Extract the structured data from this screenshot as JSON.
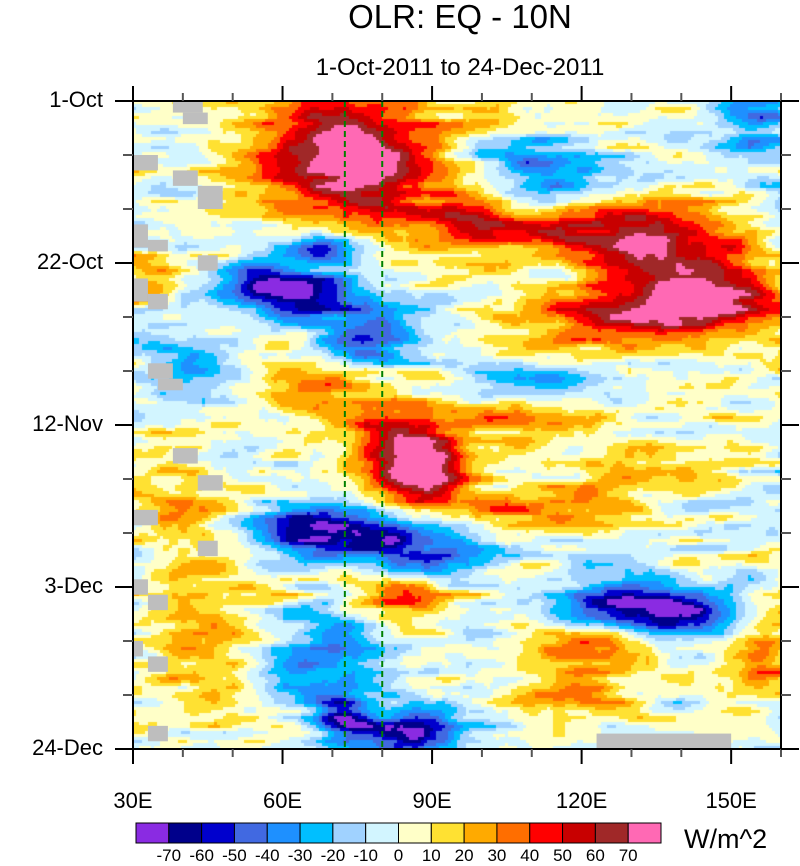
{
  "chart_data": {
    "type": "heatmap",
    "title": "OLR: EQ - 10N",
    "subtitle": "1-Oct-2011 to 24-Dec-2011",
    "xlabel": "",
    "ylabel": "",
    "x_axis": {
      "range_deg_east": [
        30,
        160
      ],
      "major_ticks": [
        30,
        60,
        90,
        120,
        150
      ],
      "tick_labels": [
        "30E",
        "60E",
        "90E",
        "120E",
        "150E"
      ],
      "minor_tick_step_deg": 10
    },
    "y_axis": {
      "range_days_from_1oct": [
        0,
        84
      ],
      "reversed": true,
      "major_ticks_days": [
        0,
        21,
        42,
        63,
        84
      ],
      "tick_labels": [
        "1-Oct",
        "22-Oct",
        "12-Nov",
        "3-Dec",
        "24-Dec"
      ],
      "minor_tick_step_days": 7
    },
    "reference_lines_deg_east": [
      72.5,
      80
    ],
    "colorbar": {
      "units": "W/m^2",
      "levels": [
        -70,
        -60,
        -50,
        -40,
        -30,
        -20,
        -10,
        0,
        10,
        20,
        30,
        40,
        50,
        60,
        70
      ],
      "colors": [
        "#8a2be2",
        "#00008b",
        "#0000cd",
        "#4169e1",
        "#1e90ff",
        "#00bfff",
        "#a0d2ff",
        "#d2f5ff",
        "#ffffc8",
        "#ffe132",
        "#ffaa00",
        "#ff6e00",
        "#ff0000",
        "#c80000",
        "#a02828",
        "#ff69b4"
      ],
      "label_text": [
        "-70",
        "-60",
        "-50",
        "-40",
        "-30",
        "-20",
        "-10",
        "0",
        "10",
        "20",
        "30",
        "40",
        "50",
        "60",
        "70"
      ]
    },
    "missing_color": "#bebebe",
    "features": [
      {
        "lon": 76,
        "day": 8,
        "amp": 68,
        "slon": 9,
        "sday": 5
      },
      {
        "lon": 66,
        "day": 6,
        "amp": 35,
        "slon": 12,
        "sday": 8
      },
      {
        "lon": 95,
        "day": 15,
        "amp": 45,
        "slon": 8,
        "sday": 3
      },
      {
        "lon": 128,
        "day": 17,
        "amp": 52,
        "slon": 10,
        "sday": 3
      },
      {
        "lon": 140,
        "day": 21,
        "amp": 45,
        "slon": 12,
        "sday": 4
      },
      {
        "lon": 130,
        "day": 28,
        "amp": 55,
        "slon": 14,
        "sday": 3
      },
      {
        "lon": 148,
        "day": 26,
        "amp": 45,
        "slon": 10,
        "sday": 3
      },
      {
        "lon": 110,
        "day": 17,
        "amp": 30,
        "slon": 10,
        "sday": 2
      },
      {
        "lon": 100,
        "day": 4,
        "amp": 25,
        "slon": 8,
        "sday": 3
      },
      {
        "lon": 63,
        "day": 25,
        "amp": -72,
        "slon": 9,
        "sday": 2
      },
      {
        "lon": 68,
        "day": 19,
        "amp": -55,
        "slon": 5,
        "sday": 2
      },
      {
        "lon": 77,
        "day": 31,
        "amp": -62,
        "slon": 8,
        "sday": 3
      },
      {
        "lon": 55,
        "day": 22,
        "amp": -40,
        "slon": 6,
        "sday": 2
      },
      {
        "lon": 115,
        "day": 10,
        "amp": -45,
        "slon": 8,
        "sday": 2
      },
      {
        "lon": 105,
        "day": 6,
        "amp": -35,
        "slon": 8,
        "sday": 2
      },
      {
        "lon": 155,
        "day": 3,
        "amp": -40,
        "slon": 6,
        "sday": 3
      },
      {
        "lon": 110,
        "day": 37,
        "amp": -45,
        "slon": 9,
        "sday": 2
      },
      {
        "lon": 108,
        "day": 41,
        "amp": 40,
        "slon": 8,
        "sday": 2
      },
      {
        "lon": 84,
        "day": 46,
        "amp": 62,
        "slon": 7,
        "sday": 4
      },
      {
        "lon": 90,
        "day": 48,
        "amp": 55,
        "slon": 5,
        "sday": 3
      },
      {
        "lon": 72,
        "day": 37,
        "amp": 30,
        "slon": 10,
        "sday": 4
      },
      {
        "lon": 80,
        "day": 57,
        "amp": -74,
        "slon": 12,
        "sday": 2.5
      },
      {
        "lon": 63,
        "day": 55,
        "amp": -55,
        "slon": 7,
        "sday": 2
      },
      {
        "lon": 90,
        "day": 61,
        "amp": -45,
        "slon": 8,
        "sday": 1.5
      },
      {
        "lon": 110,
        "day": 53,
        "amp": 38,
        "slon": 12,
        "sday": 2
      },
      {
        "lon": 135,
        "day": 48,
        "amp": 30,
        "slon": 10,
        "sday": 2
      },
      {
        "lon": 85,
        "day": 63,
        "amp": 55,
        "slon": 7,
        "sday": 3
      },
      {
        "lon": 128,
        "day": 65,
        "amp": -62,
        "slon": 10,
        "sday": 2
      },
      {
        "lon": 140,
        "day": 67,
        "amp": -50,
        "slon": 8,
        "sday": 2
      },
      {
        "lon": 120,
        "day": 71,
        "amp": 40,
        "slon": 8,
        "sday": 2
      },
      {
        "lon": 157,
        "day": 72,
        "amp": 45,
        "slon": 5,
        "sday": 3
      },
      {
        "lon": 85,
        "day": 82,
        "amp": -72,
        "slon": 7,
        "sday": 2
      },
      {
        "lon": 72,
        "day": 80,
        "amp": -55,
        "slon": 4,
        "sday": 2
      },
      {
        "lon": 70,
        "day": 72,
        "amp": -40,
        "slon": 10,
        "sday": 4
      },
      {
        "lon": 120,
        "day": 77,
        "amp": 35,
        "slon": 8,
        "sday": 2
      },
      {
        "lon": 45,
        "day": 68,
        "amp": 25,
        "slon": 8,
        "sday": 8
      },
      {
        "lon": 38,
        "day": 50,
        "amp": 18,
        "slon": 6,
        "sday": 6
      },
      {
        "lon": 40,
        "day": 35,
        "amp": -30,
        "slon": 6,
        "sday": 3
      },
      {
        "lon": 33,
        "day": 23,
        "amp": 28,
        "slon": 5,
        "sday": 2
      }
    ],
    "missing_boxes": [
      {
        "lon0": 38,
        "lon1": 44,
        "day0": 0,
        "day1": 1.5
      },
      {
        "lon0": 40,
        "lon1": 45,
        "day0": 1.5,
        "day1": 3
      },
      {
        "lon0": 30,
        "lon1": 35,
        "day0": 7,
        "day1": 9
      },
      {
        "lon0": 38,
        "lon1": 43,
        "day0": 9,
        "day1": 11
      },
      {
        "lon0": 43,
        "lon1": 48,
        "day0": 11,
        "day1": 14
      },
      {
        "lon0": 30,
        "lon1": 33,
        "day0": 16,
        "day1": 19
      },
      {
        "lon0": 33,
        "lon1": 37,
        "day0": 18,
        "day1": 19.5
      },
      {
        "lon0": 43,
        "lon1": 47,
        "day0": 20,
        "day1": 22
      },
      {
        "lon0": 30,
        "lon1": 33,
        "day0": 23,
        "day1": 26
      },
      {
        "lon0": 33,
        "lon1": 37,
        "day0": 25,
        "day1": 27
      },
      {
        "lon0": 33,
        "lon1": 38,
        "day0": 34,
        "day1": 36
      },
      {
        "lon0": 35,
        "lon1": 40,
        "day0": 36,
        "day1": 37.5
      },
      {
        "lon0": 38,
        "lon1": 43,
        "day0": 45,
        "day1": 47
      },
      {
        "lon0": 43,
        "lon1": 48,
        "day0": 48.5,
        "day1": 50.5
      },
      {
        "lon0": 30,
        "lon1": 35,
        "day0": 53,
        "day1": 55
      },
      {
        "lon0": 43,
        "lon1": 47,
        "day0": 57,
        "day1": 59
      },
      {
        "lon0": 30,
        "lon1": 33,
        "day0": 62,
        "day1": 64
      },
      {
        "lon0": 33,
        "lon1": 37,
        "day0": 64,
        "day1": 66
      },
      {
        "lon0": 30,
        "lon1": 32,
        "day0": 70,
        "day1": 72
      },
      {
        "lon0": 33,
        "lon1": 37,
        "day0": 72,
        "day1": 74
      },
      {
        "lon0": 33,
        "lon1": 37,
        "day0": 81,
        "day1": 83
      },
      {
        "lon0": 123,
        "lon1": 150,
        "day0": 82,
        "day1": 84
      }
    ]
  }
}
